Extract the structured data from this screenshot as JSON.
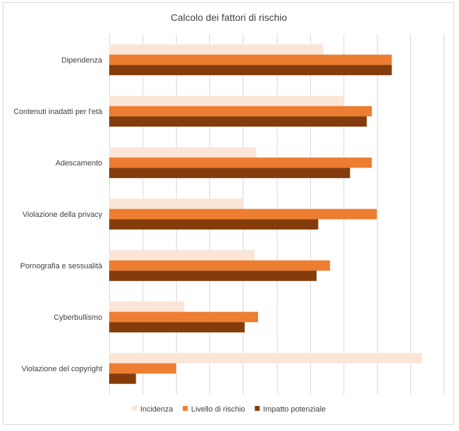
{
  "chart_data": {
    "type": "bar",
    "orientation": "horizontal",
    "title": "Calcolo dei fattori di rischio",
    "categories": [
      "Dipendenza",
      "Contenuti inadatti per l'età",
      "Adescamento",
      "Violazione della privacy",
      "Pornografia e sessualità",
      "Cyberbullismo",
      "Violazione del copyright"
    ],
    "series": [
      {
        "name": "Incidenza",
        "color": "#FBE5D6",
        "values": [
          6.4,
          7.0,
          4.4,
          4.0,
          4.35,
          2.25,
          9.35
        ]
      },
      {
        "name": "Livello di rischio",
        "color": "#ED7D31",
        "values": [
          8.45,
          7.85,
          7.85,
          8.0,
          6.6,
          4.45,
          2.0
        ]
      },
      {
        "name": "Impatto potenziale",
        "color": "#843C0C",
        "values": [
          8.45,
          7.7,
          7.2,
          6.25,
          6.2,
          4.05,
          0.8
        ]
      }
    ],
    "xlim": [
      0,
      10
    ],
    "grid": true,
    "legend_position": "bottom"
  }
}
